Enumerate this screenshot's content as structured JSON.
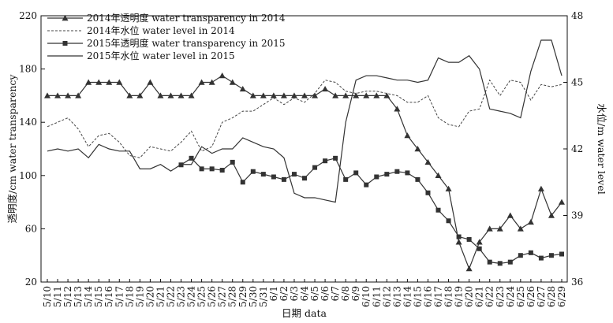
{
  "chart_data": {
    "type": "line",
    "xlabel": "日期 data",
    "ylabel_left": "透明度/cm water transparency",
    "ylabel_right": "水位/m water level",
    "ylim_left": [
      20,
      220
    ],
    "ylim_right": [
      36,
      48
    ],
    "yticks_left": [
      20,
      60,
      100,
      140,
      180,
      220
    ],
    "yticks_right": [
      36,
      39,
      42,
      45,
      48
    ],
    "grid": false,
    "legend_position": "top-left",
    "categories": [
      "5/10",
      "5/11",
      "5/12",
      "5/13",
      "5/14",
      "5/15",
      "5/16",
      "5/17",
      "5/18",
      "5/19",
      "5/20",
      "5/21",
      "5/22",
      "5/23",
      "5/24",
      "5/25",
      "5/26",
      "5/27",
      "5/28",
      "5/29",
      "5/30",
      "5/31",
      "6/1",
      "6/2",
      "6/3",
      "6/4",
      "6/5",
      "6/6",
      "6/7",
      "6/8",
      "6/9",
      "6/10",
      "6/11",
      "6/12",
      "6/13",
      "6/14",
      "6/15",
      "6/16",
      "6/17",
      "6/18",
      "6/19",
      "6/20",
      "6/21",
      "6/22",
      "6/23",
      "6/24",
      "6/25",
      "6/26",
      "6/27",
      "6/28",
      "6/29"
    ],
    "series": [
      {
        "name": "2014年透明度 water transparency in 2014",
        "axis": "left",
        "style": "solid-triangle",
        "values": [
          160,
          160,
          160,
          160,
          170,
          170,
          170,
          170,
          160,
          160,
          170,
          160,
          160,
          160,
          160,
          170,
          170,
          175,
          170,
          165,
          160,
          160,
          160,
          160,
          160,
          160,
          160,
          165,
          160,
          160,
          160,
          160,
          160,
          160,
          150,
          130,
          120,
          110,
          100,
          90,
          50,
          30,
          50,
          60,
          60,
          70,
          60,
          65,
          90,
          70,
          80
        ]
      },
      {
        "name": "2014年水位 water level in 2014",
        "axis": "right",
        "style": "dashed",
        "values": [
          43,
          43.2,
          43.4,
          42.9,
          42.1,
          42.6,
          42.7,
          42.3,
          41.7,
          41.6,
          42.1,
          42.0,
          41.9,
          42.3,
          42.8,
          41.9,
          42.1,
          43.2,
          43.4,
          43.7,
          43.7,
          44,
          44.3,
          44,
          44.3,
          44.1,
          44.5,
          45.1,
          45,
          44.6,
          44.5,
          44.6,
          44.6,
          44.5,
          44.4,
          44.1,
          44.1,
          44.4,
          43.4,
          43.1,
          43,
          43.7,
          43.8,
          45.1,
          44.4,
          45.1,
          45,
          44.2,
          44.9,
          44.8,
          44.9
        ]
      },
      {
        "name": "2015年透明度 water transparency in 2015",
        "axis": "left",
        "style": "solid-square",
        "values": [
          null,
          null,
          null,
          null,
          null,
          null,
          null,
          null,
          null,
          null,
          null,
          null,
          null,
          108,
          113,
          105,
          105,
          104,
          110,
          95,
          103,
          101,
          99,
          97,
          101,
          98,
          106,
          111,
          113,
          97,
          102,
          93,
          99,
          101,
          103,
          102,
          97,
          87,
          74,
          66,
          54,
          52,
          45,
          35,
          34,
          35,
          40,
          42,
          38,
          40,
          41
        ]
      },
      {
        "name": "2015年水位 water level in 2015",
        "axis": "right",
        "style": "solid",
        "values": [
          41.9,
          42,
          41.9,
          42,
          41.6,
          42.2,
          42,
          41.9,
          41.9,
          41.1,
          41.1,
          41.3,
          41,
          41.3,
          41.3,
          42.1,
          41.8,
          42,
          42,
          42.5,
          42.3,
          42.1,
          42,
          41.6,
          40,
          39.8,
          39.8,
          39.7,
          39.6,
          43.2,
          45.1,
          45.3,
          45.3,
          45.2,
          45.1,
          45.1,
          45,
          45.1,
          46.1,
          45.9,
          45.9,
          46.2,
          45.6,
          43.8,
          43.7,
          43.6,
          43.4,
          45.5,
          46.9,
          46.9,
          45.3
        ]
      }
    ]
  }
}
